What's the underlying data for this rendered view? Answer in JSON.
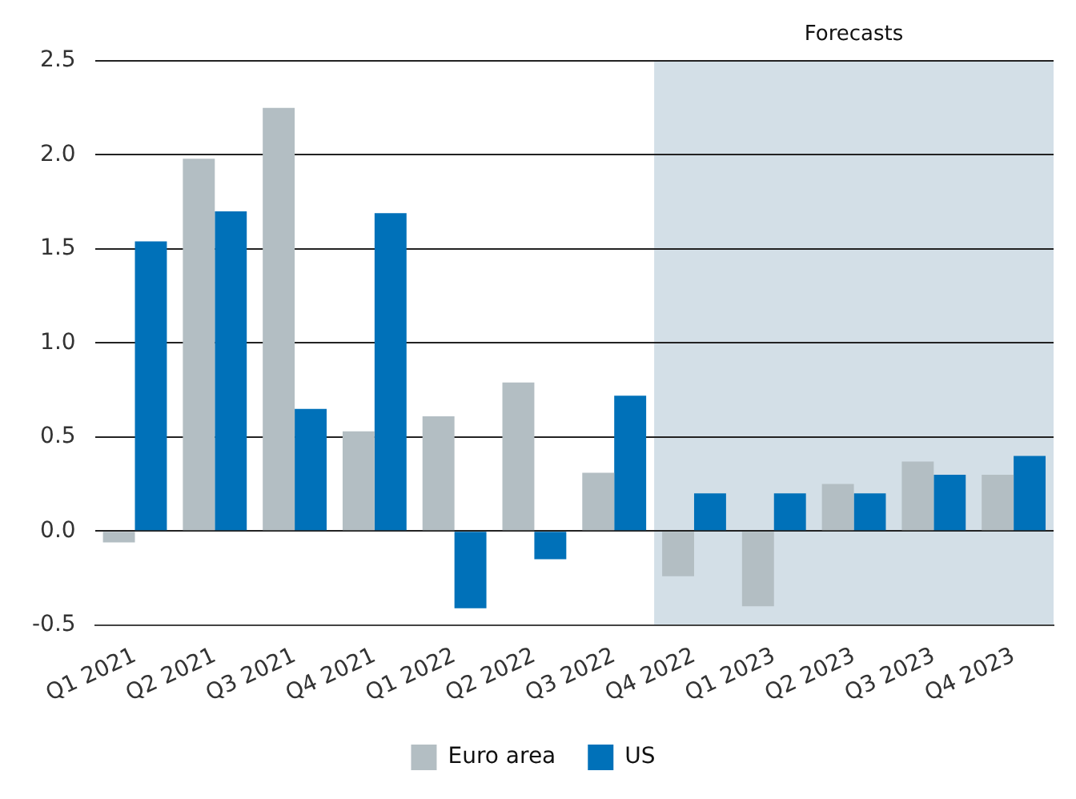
{
  "chart_data": {
    "type": "bar",
    "categories": [
      "Q1 2021",
      "Q2 2021",
      "Q3 2021",
      "Q4 2021",
      "Q1 2022",
      "Q2 2022",
      "Q3 2022",
      "Q4 2022",
      "Q1 2023",
      "Q2 2023",
      "Q3 2023",
      "Q4 2023"
    ],
    "series": [
      {
        "name": "Euro area",
        "color": "#b3bec3",
        "values": [
          -0.06,
          1.98,
          2.25,
          0.53,
          0.61,
          0.79,
          0.31,
          -0.24,
          -0.4,
          0.25,
          0.37,
          0.3
        ]
      },
      {
        "name": "US",
        "color": "#0071b9",
        "values": [
          1.54,
          1.7,
          0.65,
          1.69,
          -0.41,
          -0.15,
          0.72,
          0.2,
          0.2,
          0.2,
          0.3,
          0.4
        ]
      }
    ],
    "ylim": [
      -0.5,
      2.5
    ],
    "yticks": [
      {
        "value": -0.5,
        "label": "-0.5"
      },
      {
        "value": 0,
        "label": "0.0"
      },
      {
        "value": 0.5,
        "label": "0.5"
      },
      {
        "value": 1,
        "label": "1.0"
      },
      {
        "value": 1.5,
        "label": "1.5"
      },
      {
        "value": 2,
        "label": "2.0"
      },
      {
        "value": 2.5,
        "label": "2.5"
      }
    ],
    "bands": [
      {
        "axis": "x",
        "from": "Q4 2022",
        "to": "Q4 2023",
        "label": "Forecasts",
        "color": "#d3dfe7"
      }
    ],
    "grid": "y",
    "legend": "bottom"
  }
}
